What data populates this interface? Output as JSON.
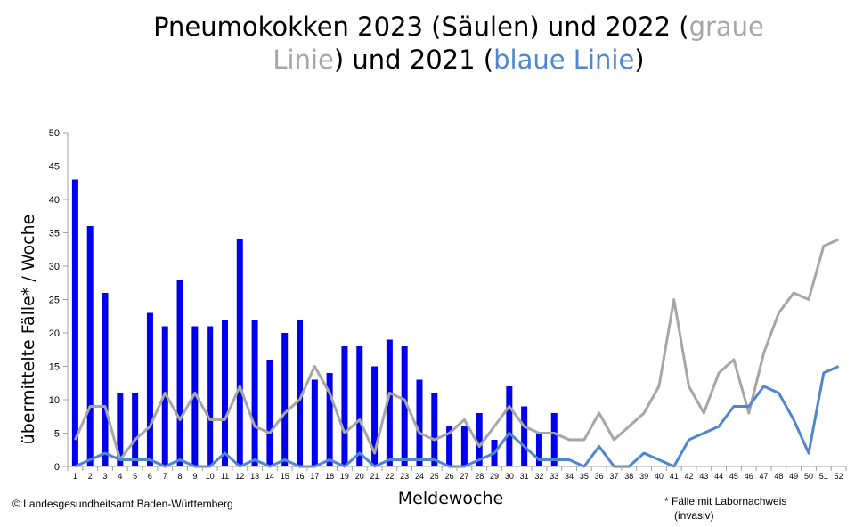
{
  "title": {
    "part1": "Pneumokokken 2023 (Säulen) und 2022 (",
    "gray_text": "graue Linie",
    "part2": ") und 2021 (",
    "blue_text": "blaue Linie",
    "part3": ")"
  },
  "credit": "© Landesgesundheitsamt Baden-Württemberg",
  "footnote": {
    "line1": "* Fälle mit Labornachweis",
    "line2": "(invasiv)"
  },
  "colors": {
    "bars": "#0000ee",
    "line_2022": "#a6a6a6",
    "line_2021": "#4f86cf",
    "axis": "#a0a0a0"
  },
  "chart_data": {
    "type": "bar",
    "xlabel": "Meldewoche",
    "ylabel": "übermittelte Fälle* / Woche",
    "ylim": [
      0,
      50
    ],
    "yticks": [
      0,
      5,
      10,
      15,
      20,
      25,
      30,
      35,
      40,
      45,
      50
    ],
    "categories": [
      "1",
      "2",
      "3",
      "4",
      "5",
      "6",
      "7",
      "8",
      "9",
      "10",
      "11",
      "12",
      "13",
      "14",
      "15",
      "16",
      "17",
      "18",
      "19",
      "20",
      "21",
      "22",
      "23",
      "24",
      "25",
      "26",
      "27",
      "28",
      "29",
      "30",
      "31",
      "32",
      "33",
      "34",
      "35",
      "36",
      "37",
      "38",
      "39",
      "40",
      "41",
      "42",
      "43",
      "44",
      "45",
      "46",
      "47",
      "48",
      "49",
      "50",
      "51",
      "52"
    ],
    "series": [
      {
        "name": "2023",
        "type": "bar",
        "values": [
          43,
          36,
          26,
          11,
          11,
          23,
          21,
          28,
          21,
          21,
          22,
          34,
          22,
          16,
          20,
          22,
          13,
          14,
          18,
          18,
          15,
          19,
          18,
          13,
          11,
          6,
          6,
          8,
          4,
          12,
          9,
          5,
          8,
          null,
          null,
          null,
          null,
          null,
          null,
          null,
          null,
          null,
          null,
          null,
          null,
          null,
          null,
          null,
          null,
          null,
          null,
          null
        ]
      },
      {
        "name": "2022",
        "type": "line",
        "values": [
          4,
          9,
          9,
          1,
          4,
          6,
          11,
          7,
          11,
          7,
          7,
          12,
          6,
          5,
          8,
          10,
          15,
          11,
          5,
          7,
          2,
          11,
          10,
          5,
          4,
          5,
          7,
          3,
          6,
          9,
          6,
          5,
          5,
          4,
          4,
          8,
          4,
          6,
          8,
          12,
          25,
          12,
          8,
          14,
          16,
          8,
          17,
          23,
          26,
          25,
          33,
          34
        ]
      },
      {
        "name": "2021",
        "type": "line",
        "values": [
          0,
          1,
          2,
          1,
          1,
          1,
          0,
          1,
          0,
          0,
          2,
          0,
          1,
          0,
          1,
          0,
          0,
          1,
          0,
          2,
          0,
          1,
          1,
          1,
          1,
          0,
          0,
          1,
          2,
          5,
          3,
          1,
          1,
          1,
          0,
          3,
          0,
          0,
          2,
          1,
          0,
          4,
          5,
          6,
          9,
          9,
          12,
          11,
          7,
          2,
          14,
          15
        ]
      }
    ]
  }
}
